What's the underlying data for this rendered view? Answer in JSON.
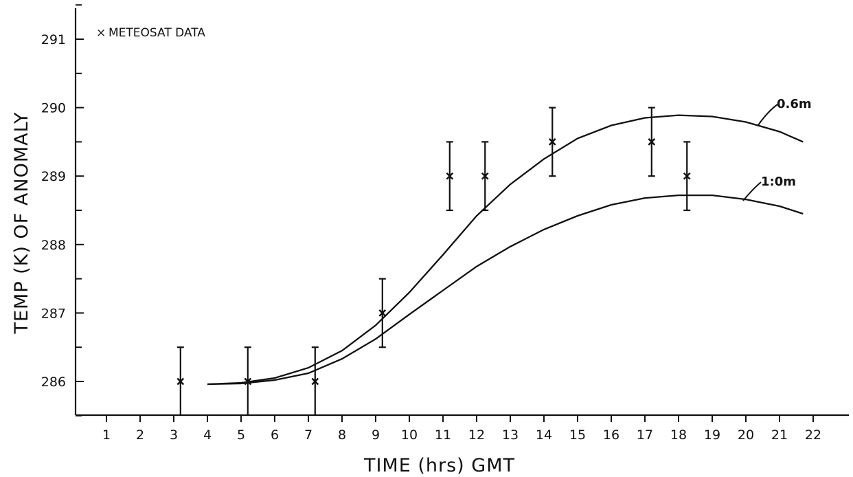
{
  "chart_data": {
    "type": "scatter",
    "title": "",
    "xlabel": "TIME (hrs) GMT",
    "ylabel": "TEMP (K) OF ANOMALY",
    "xlim": [
      0,
      23
    ],
    "ylim": [
      285.5,
      291.5
    ],
    "x_ticks": [
      1,
      2,
      3,
      4,
      5,
      6,
      7,
      8,
      9,
      10,
      11,
      12,
      13,
      14,
      15,
      16,
      17,
      18,
      19,
      20,
      21,
      22
    ],
    "y_ticks": [
      286,
      287,
      288,
      289,
      290,
      291
    ],
    "grid": false,
    "legend": {
      "placement": "top-left",
      "entries": [
        {
          "marker": "×",
          "label": "METEOSAT DATA"
        }
      ]
    },
    "points": [
      {
        "x": 3.2,
        "y": 286.0,
        "err_low": 285.5,
        "err_high": 286.5
      },
      {
        "x": 5.2,
        "y": 286.0,
        "err_low": 285.5,
        "err_high": 286.5
      },
      {
        "x": 7.2,
        "y": 286.0,
        "err_low": 285.5,
        "err_high": 286.5
      },
      {
        "x": 9.2,
        "y": 287.0,
        "err_low": 286.5,
        "err_high": 287.5
      },
      {
        "x": 11.2,
        "y": 289.0,
        "err_low": 288.5,
        "err_high": 289.5
      },
      {
        "x": 12.25,
        "y": 289.0,
        "err_low": 288.5,
        "err_high": 289.5
      },
      {
        "x": 14.25,
        "y": 289.5,
        "err_low": 289.0,
        "err_high": 290.0
      },
      {
        "x": 17.2,
        "y": 289.5,
        "err_low": 289.0,
        "err_high": 290.0
      },
      {
        "x": 18.25,
        "y": 289.0,
        "err_low": 288.5,
        "err_high": 289.5
      }
    ],
    "series": [
      {
        "name": "0.6m",
        "x": [
          4,
          5,
          6,
          7,
          8,
          9,
          10,
          11,
          12,
          13,
          14,
          15,
          16,
          17,
          18,
          19,
          20,
          21,
          21.7
        ],
        "y": [
          285.96,
          285.98,
          286.05,
          286.2,
          286.45,
          286.82,
          287.3,
          287.85,
          288.42,
          288.88,
          289.25,
          289.55,
          289.74,
          289.85,
          289.89,
          289.87,
          289.79,
          289.65,
          289.5
        ]
      },
      {
        "name": "1:0m",
        "x": [
          4,
          5,
          6,
          7,
          8,
          9,
          10,
          11,
          12,
          13,
          14,
          15,
          16,
          17,
          18,
          19,
          20,
          21,
          21.7
        ],
        "y": [
          285.96,
          285.97,
          286.02,
          286.12,
          286.33,
          286.62,
          286.98,
          287.33,
          287.68,
          287.97,
          288.22,
          288.42,
          288.58,
          288.68,
          288.72,
          288.72,
          288.66,
          288.56,
          288.45
        ]
      }
    ]
  }
}
